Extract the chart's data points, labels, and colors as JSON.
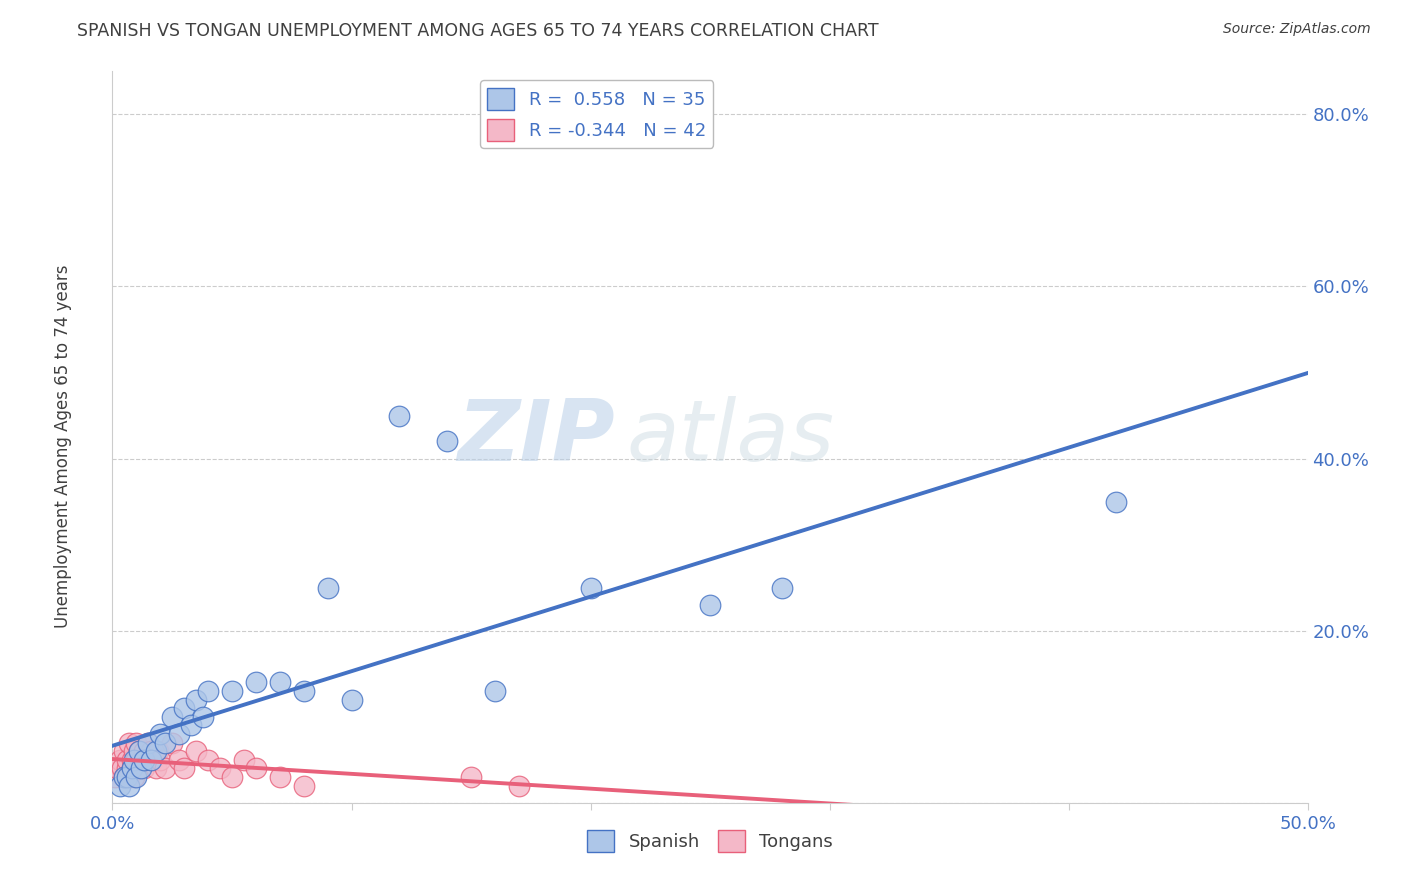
{
  "title": "SPANISH VS TONGAN UNEMPLOYMENT AMONG AGES 65 TO 74 YEARS CORRELATION CHART",
  "source": "Source: ZipAtlas.com",
  "ylabel": "Unemployment Among Ages 65 to 74 years",
  "xlim": [
    0.0,
    0.5
  ],
  "ylim": [
    0.0,
    0.85
  ],
  "xticks": [
    0.0,
    0.1,
    0.2,
    0.3,
    0.4,
    0.5
  ],
  "xtick_labels": [
    "0.0%",
    "",
    "",
    "",
    "",
    "50.0%"
  ],
  "yticks": [
    0.0,
    0.2,
    0.4,
    0.6,
    0.8
  ],
  "ytick_labels": [
    "",
    "20.0%",
    "40.0%",
    "60.0%",
    "80.0%"
  ],
  "spanish_r": 0.558,
  "spanish_n": 35,
  "tongan_r": -0.344,
  "tongan_n": 42,
  "spanish_color": "#adc6e8",
  "tongan_color": "#f4b8c8",
  "spanish_line_color": "#4472c4",
  "tongan_line_color": "#e8607a",
  "watermark_zip": "ZIP",
  "watermark_atlas": "atlas",
  "background_color": "#ffffff",
  "grid_color": "#cccccc",
  "title_color": "#404040",
  "tick_label_color": "#4472c4",
  "spanish_x": [
    0.003,
    0.005,
    0.006,
    0.007,
    0.008,
    0.009,
    0.01,
    0.011,
    0.012,
    0.013,
    0.015,
    0.016,
    0.018,
    0.02,
    0.022,
    0.025,
    0.028,
    0.03,
    0.033,
    0.035,
    0.038,
    0.04,
    0.05,
    0.06,
    0.07,
    0.08,
    0.09,
    0.1,
    0.12,
    0.14,
    0.16,
    0.2,
    0.25,
    0.28,
    0.42
  ],
  "spanish_y": [
    0.02,
    0.03,
    0.03,
    0.02,
    0.04,
    0.05,
    0.03,
    0.06,
    0.04,
    0.05,
    0.07,
    0.05,
    0.06,
    0.08,
    0.07,
    0.1,
    0.08,
    0.11,
    0.09,
    0.12,
    0.1,
    0.13,
    0.13,
    0.14,
    0.14,
    0.13,
    0.25,
    0.12,
    0.45,
    0.42,
    0.13,
    0.25,
    0.23,
    0.25,
    0.35
  ],
  "tongan_x": [
    0.001,
    0.002,
    0.003,
    0.004,
    0.005,
    0.005,
    0.006,
    0.006,
    0.007,
    0.007,
    0.008,
    0.008,
    0.009,
    0.009,
    0.01,
    0.01,
    0.011,
    0.011,
    0.012,
    0.013,
    0.013,
    0.014,
    0.015,
    0.016,
    0.017,
    0.018,
    0.019,
    0.02,
    0.022,
    0.025,
    0.028,
    0.03,
    0.035,
    0.04,
    0.045,
    0.05,
    0.055,
    0.06,
    0.07,
    0.08,
    0.15,
    0.17
  ],
  "tongan_y": [
    0.03,
    0.04,
    0.05,
    0.04,
    0.03,
    0.06,
    0.04,
    0.05,
    0.03,
    0.07,
    0.05,
    0.04,
    0.06,
    0.03,
    0.05,
    0.07,
    0.04,
    0.06,
    0.05,
    0.04,
    0.06,
    0.05,
    0.07,
    0.06,
    0.05,
    0.04,
    0.06,
    0.05,
    0.04,
    0.07,
    0.05,
    0.04,
    0.06,
    0.05,
    0.04,
    0.03,
    0.05,
    0.04,
    0.03,
    0.02,
    0.03,
    0.02
  ]
}
